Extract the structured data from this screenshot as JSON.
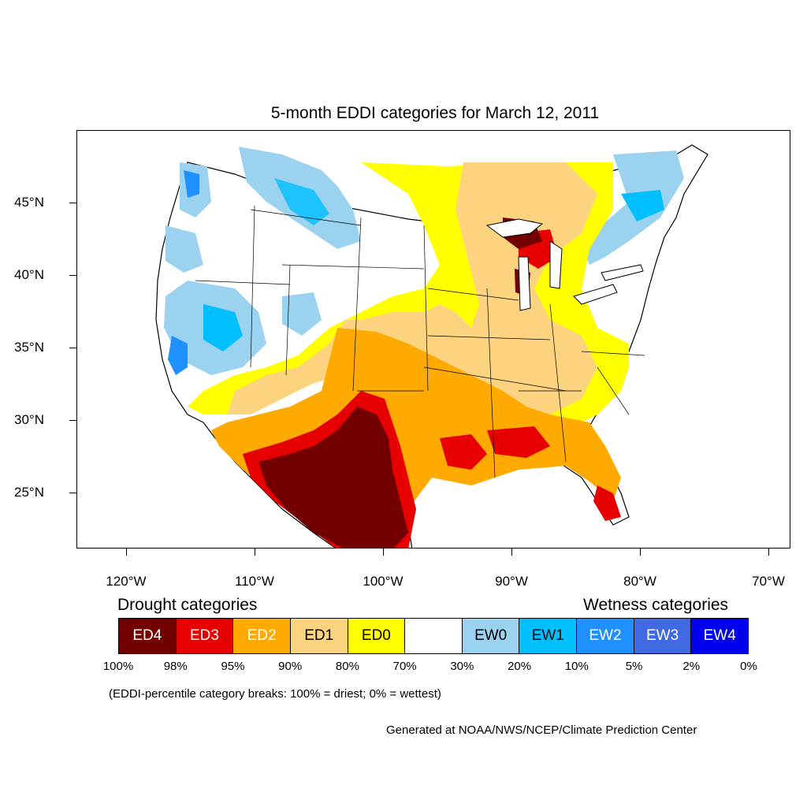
{
  "title": "5-month EDDI categories for March 12, 2011",
  "lat_labels": [
    "45°N",
    "40°N",
    "35°N",
    "30°N",
    "25°N"
  ],
  "lon_labels": [
    "120°W",
    "110°W",
    "100°W",
    "90°W",
    "80°W",
    "70°W"
  ],
  "drought_heading": "Drought categories",
  "wetness_heading": "Wetness categories",
  "legend": [
    {
      "label": "ED4",
      "color": "#730000",
      "text_color": "#ffffff"
    },
    {
      "label": "ED3",
      "color": "#e60000",
      "text_color": "#ffffff"
    },
    {
      "label": "ED2",
      "color": "#ffaa00",
      "text_color": "#ffffff"
    },
    {
      "label": "ED1",
      "color": "#fcd37f",
      "text_color": "#000000"
    },
    {
      "label": "ED0",
      "color": "#ffff00",
      "text_color": "#000000"
    },
    {
      "label": "",
      "color": "#ffffff",
      "text_color": "#000000"
    },
    {
      "label": "EW0",
      "color": "#9ad2f0",
      "text_color": "#000000"
    },
    {
      "label": "EW1",
      "color": "#00bfff",
      "text_color": "#000000"
    },
    {
      "label": "EW2",
      "color": "#1e90ff",
      "text_color": "#ffffff"
    },
    {
      "label": "EW3",
      "color": "#4169e1",
      "text_color": "#ffffff"
    },
    {
      "label": "EW4",
      "color": "#0000ee",
      "text_color": "#ffffff"
    }
  ],
  "breaks": [
    "100%",
    "98%",
    "95%",
    "90%",
    "80%",
    "70%",
    "30%",
    "20%",
    "10%",
    "5%",
    "2%",
    "0%"
  ],
  "breaks_note": "(EDDI-percentile category breaks: 100% = driest; 0% = wettest)",
  "credit": "Generated at NOAA/NWS/NCEP/Climate Prediction Center"
}
